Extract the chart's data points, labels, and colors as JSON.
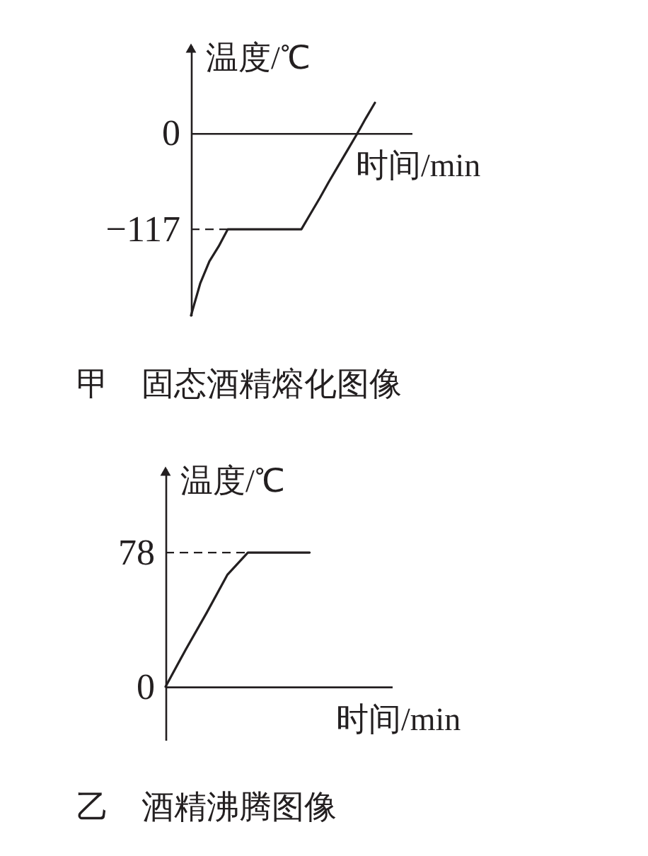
{
  "chart_data": [
    {
      "type": "line",
      "title": "甲　固态酒精熔化图像",
      "xlabel": "时间/min",
      "ylabel": "温度/℃",
      "tick_labels": "y",
      "categories": [
        null,
        null,
        null,
        null,
        null,
        null,
        null,
        null,
        null,
        null,
        null,
        null,
        null,
        null,
        null,
        null,
        null,
        null,
        null,
        null,
        null,
        null,
        null,
        null,
        null
      ],
      "series": [
        {
          "color": "#231f20",
          "values": [
            -222,
            -183,
            -156,
            -138,
            -117,
            -117,
            -117,
            -117,
            -117,
            -117,
            -117,
            -117,
            -117,
            -98,
            -79,
            -59,
            -40,
            -21,
            -2,
            18,
            37,
            null,
            null,
            null,
            null
          ]
        }
      ],
      "ylim": [
        -222,
        107
      ],
      "yticks": [
        -117,
        0
      ],
      "ref_lines": [
        {
          "axis": "y",
          "value": -117,
          "line_style": "dashed",
          "color": "#231f20"
        }
      ]
    },
    {
      "type": "line",
      "title": "乙　酒精沸腾图像",
      "xlabel": "时间/min",
      "ylabel": "温度/℃",
      "tick_labels": "y",
      "categories": [
        null,
        null,
        null,
        null,
        null,
        null,
        null,
        null,
        null,
        null,
        null,
        null
      ],
      "series": [
        {
          "color": "#231f20",
          "values": [
            0,
            22,
            43,
            65,
            78,
            78,
            78,
            78,
            null,
            null,
            null,
            null
          ]
        }
      ],
      "ylim": [
        -31,
        127
      ],
      "yticks": [
        0,
        78
      ],
      "ref_lines": [
        {
          "axis": "y",
          "value": 78,
          "line_style": "dashed",
          "color": "#231f20"
        }
      ]
    }
  ]
}
